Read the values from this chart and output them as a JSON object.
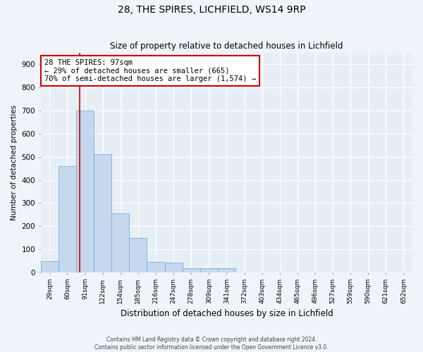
{
  "title1": "28, THE SPIRES, LICHFIELD, WS14 9RP",
  "title2": "Size of property relative to detached houses in Lichfield",
  "xlabel": "Distribution of detached houses by size in Lichfield",
  "ylabel": "Number of detached properties",
  "categories": [
    "29sqm",
    "60sqm",
    "91sqm",
    "122sqm",
    "154sqm",
    "185sqm",
    "216sqm",
    "247sqm",
    "278sqm",
    "309sqm",
    "341sqm",
    "372sqm",
    "403sqm",
    "434sqm",
    "465sqm",
    "496sqm",
    "527sqm",
    "559sqm",
    "590sqm",
    "621sqm",
    "652sqm"
  ],
  "bar_values": [
    50,
    460,
    700,
    510,
    255,
    150,
    45,
    43,
    18,
    18,
    18,
    0,
    0,
    0,
    0,
    0,
    0,
    0,
    0,
    0,
    0
  ],
  "bar_color": "#c5d8ee",
  "bar_edge_color": "#7aafd4",
  "vline_index": 2,
  "annotation_text": "28 THE SPIRES: 97sqm\n← 29% of detached houses are smaller (665)\n70% of semi-detached houses are larger (1,574) →",
  "annotation_box_color": "#ffffff",
  "annotation_box_edge": "#cc0000",
  "vline_color": "#cc0000",
  "ylim": [
    0,
    950
  ],
  "yticks": [
    0,
    100,
    200,
    300,
    400,
    500,
    600,
    700,
    800,
    900
  ],
  "background_color": "#e8eef6",
  "grid_color": "#ffffff",
  "footer1": "Contains HM Land Registry data © Crown copyright and database right 2024.",
  "footer2": "Contains public sector information licensed under the Open Government Licence v3.0."
}
